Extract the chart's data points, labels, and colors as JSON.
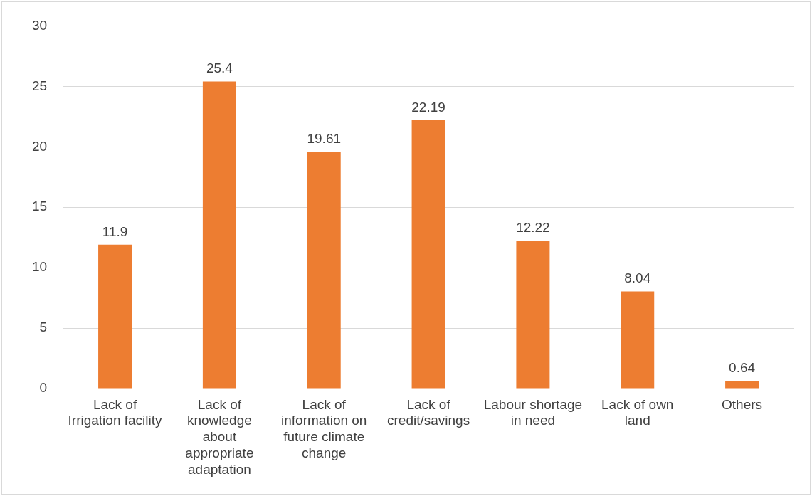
{
  "chart_data": {
    "type": "bar",
    "categories": [
      "Lack of Irrigation facility",
      "Lack of knowledge about appropriate adaptation",
      "Lack of information on future climate change",
      "Lack of credit/savings",
      "Labour shortage in need",
      "Lack of own land",
      "Others"
    ],
    "values": [
      11.9,
      25.4,
      19.61,
      22.19,
      12.22,
      8.04,
      0.64
    ],
    "color": "#ed7d31",
    "ylim": [
      0,
      30
    ],
    "yticks": [
      0,
      5,
      10,
      15,
      20,
      25,
      30
    ],
    "grid": "y",
    "legend": false,
    "data_labels": true
  }
}
